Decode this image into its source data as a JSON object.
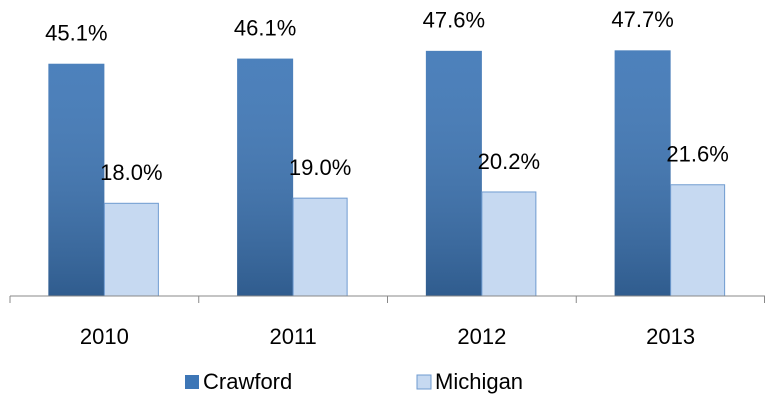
{
  "chart_data": {
    "type": "bar",
    "categories": [
      "2010",
      "2011",
      "2012",
      "2013"
    ],
    "series": [
      {
        "name": "Crawford",
        "color": "#3d76b6",
        "values": [
          45.1,
          46.1,
          47.6,
          47.7
        ],
        "value_labels": [
          "45.1%",
          "46.1%",
          "47.6%",
          "47.7%"
        ]
      },
      {
        "name": "Michigan",
        "color": "#c6d9f1",
        "values": [
          18.0,
          19.0,
          20.2,
          21.6
        ],
        "value_labels": [
          "18.0%",
          "19.0%",
          "20.2%",
          "21.6%"
        ]
      }
    ],
    "legend": "bottom"
  }
}
